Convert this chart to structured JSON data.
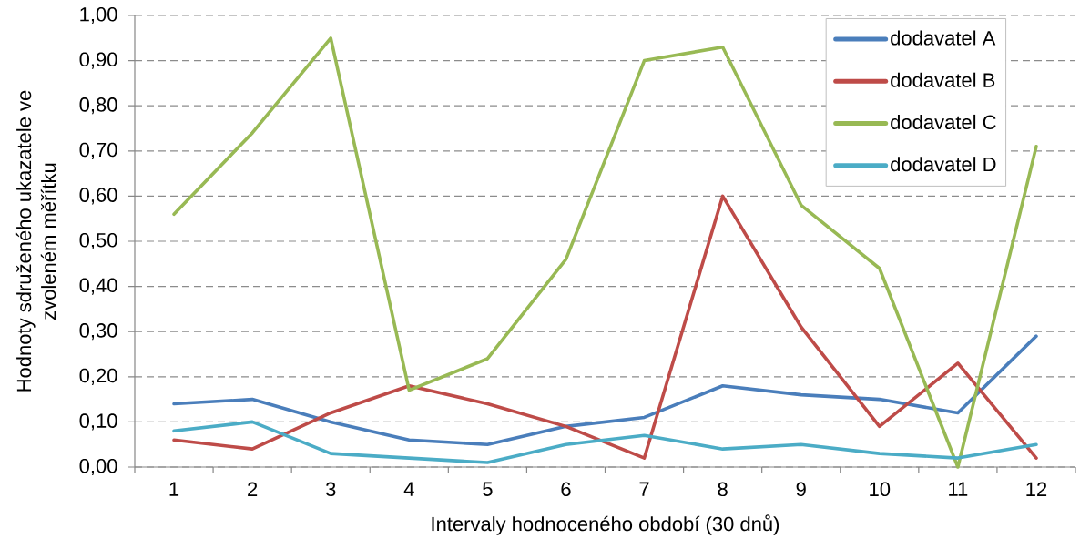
{
  "chart_data": {
    "type": "line",
    "xlabel": "Intervaly hodnoceného období (30 dnů)",
    "ylabel": "Hodnoty sdruženého ukazatele ve zvoleném měřítku",
    "categories": [
      "1",
      "2",
      "3",
      "4",
      "5",
      "6",
      "7",
      "8",
      "9",
      "10",
      "11",
      "12"
    ],
    "series": [
      {
        "name": "dodavatel A",
        "color": "#4a7ebb",
        "values": [
          0.14,
          0.15,
          0.1,
          0.06,
          0.05,
          0.09,
          0.11,
          0.18,
          0.16,
          0.15,
          0.12,
          0.29
        ]
      },
      {
        "name": "dodavatel B",
        "color": "#be4b48",
        "values": [
          0.06,
          0.04,
          0.12,
          0.18,
          0.14,
          0.09,
          0.02,
          0.6,
          0.31,
          0.09,
          0.23,
          0.02
        ]
      },
      {
        "name": "dodavatel C",
        "color": "#98b954",
        "values": [
          0.56,
          0.74,
          0.95,
          0.17,
          0.24,
          0.46,
          0.9,
          0.93,
          0.58,
          0.44,
          0.0,
          0.71
        ]
      },
      {
        "name": "dodavatel D",
        "color": "#4bacc6",
        "values": [
          0.08,
          0.1,
          0.03,
          0.02,
          0.01,
          0.05,
          0.07,
          0.04,
          0.05,
          0.03,
          0.02,
          0.05
        ]
      }
    ],
    "ylim": [
      0,
      1
    ],
    "yticks": [
      {
        "value": 0,
        "label": "0,00"
      },
      {
        "value": 0.1,
        "label": "0,10"
      },
      {
        "value": 0.2,
        "label": "0,20"
      },
      {
        "value": 0.3,
        "label": "0,30"
      },
      {
        "value": 0.4,
        "label": "0,40"
      },
      {
        "value": 0.5,
        "label": "0,50"
      },
      {
        "value": 0.6,
        "label": "0,60"
      },
      {
        "value": 0.7,
        "label": "0,70"
      },
      {
        "value": 0.8,
        "label": "0,80"
      },
      {
        "value": 0.9,
        "label": "0,90"
      },
      {
        "value": 1,
        "label": "1,00"
      }
    ],
    "grid": "y",
    "legend": "top right"
  }
}
